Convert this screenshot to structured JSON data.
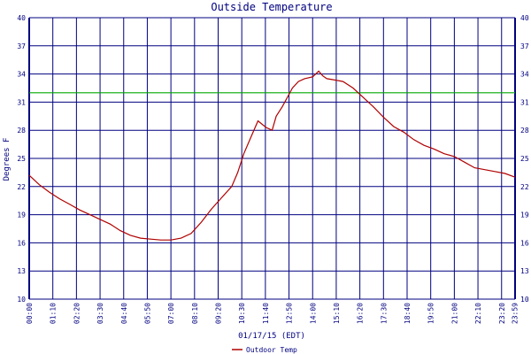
{
  "chart_data": {
    "type": "line",
    "title": "Outside Temperature",
    "ylabel": "Degrees F",
    "xlabel": "01/17/15 (EDT)",
    "ylim": [
      10,
      40
    ],
    "y_ticks": [
      10,
      13,
      16,
      19,
      22,
      25,
      28,
      31,
      34,
      37,
      40
    ],
    "x_tick_labels": [
      "00:00",
      "01:10",
      "02:20",
      "03:30",
      "04:40",
      "05:50",
      "07:00",
      "08:10",
      "09:20",
      "10:30",
      "11:40",
      "12:50",
      "14:00",
      "15:10",
      "16:20",
      "17:30",
      "18:40",
      "19:50",
      "21:00",
      "22:10",
      "23:20",
      "23:59"
    ],
    "grid": true,
    "reference_line": {
      "value": 32,
      "color": "#00aa00"
    },
    "legend": {
      "position": "bottom-center",
      "label": "Outdoor Temp"
    },
    "colors": {
      "series": "#b00000",
      "grid": "#000080",
      "axis_text": "#000080"
    },
    "series": [
      {
        "name": "Outdoor Temp",
        "x_hours": [
          0,
          0.5,
          1,
          1.5,
          2,
          2.5,
          3,
          3.5,
          4,
          4.5,
          5,
          5.5,
          6,
          6.5,
          7,
          7.5,
          8,
          8.5,
          9,
          9.5,
          10,
          10.3,
          10.6,
          11,
          11.3,
          11.7,
          12,
          12.2,
          12.5,
          12.8,
          13,
          13.3,
          13.6,
          14,
          14.3,
          14.5,
          14.7,
          15,
          15.5,
          16,
          16.5,
          17,
          17.5,
          18,
          18.5,
          19,
          19.5,
          20,
          20.5,
          21,
          21.5,
          22,
          22.5,
          23,
          23.5,
          24
        ],
        "values": [
          23.2,
          22.2,
          21.4,
          20.7,
          20.1,
          19.5,
          19.0,
          18.5,
          18.0,
          17.3,
          16.8,
          16.5,
          16.4,
          16.3,
          16.3,
          16.5,
          17.0,
          18.2,
          19.6,
          20.8,
          22.0,
          23.5,
          25.5,
          27.5,
          29.0,
          28.3,
          28.0,
          29.5,
          30.5,
          31.7,
          32.5,
          33.2,
          33.5,
          33.7,
          34.3,
          33.8,
          33.5,
          33.4,
          33.2,
          32.5,
          31.5,
          30.5,
          29.4,
          28.4,
          27.8,
          27.0,
          26.4,
          26.0,
          25.5,
          25.2,
          24.6,
          24.0,
          23.8,
          23.6,
          23.4,
          23.0
        ]
      }
    ]
  }
}
